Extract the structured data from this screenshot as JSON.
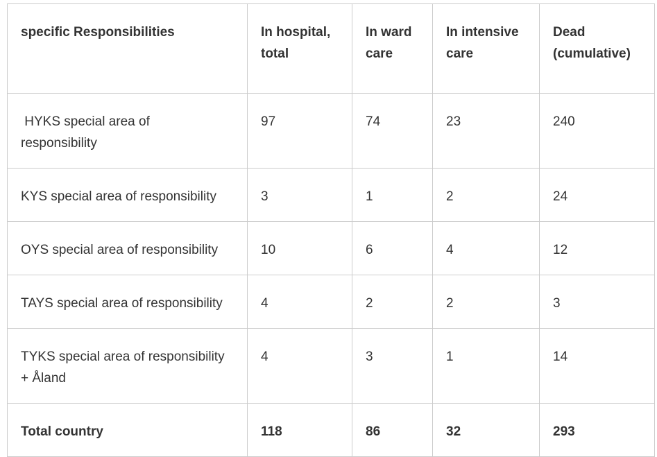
{
  "chart_data": {
    "type": "table",
    "title": "",
    "columns": [
      "specific Responsibilities",
      "In hospital, total",
      "In ward care",
      "In intensive care",
      "Dead (cumulative)"
    ],
    "rows": [
      {
        "label": "HYKS special area of responsibility",
        "in_hospital_total": 97,
        "in_ward_care": 74,
        "in_intensive_care": 23,
        "dead_cumulative": 240
      },
      {
        "label": "KYS special area of responsibility",
        "in_hospital_total": 3,
        "in_ward_care": 1,
        "in_intensive_care": 2,
        "dead_cumulative": 24
      },
      {
        "label": "OYS special area of responsibility",
        "in_hospital_total": 10,
        "in_ward_care": 6,
        "in_intensive_care": 4,
        "dead_cumulative": 12
      },
      {
        "label": "TAYS special area of responsibility",
        "in_hospital_total": 4,
        "in_ward_care": 2,
        "in_intensive_care": 2,
        "dead_cumulative": 3
      },
      {
        "label": "TYKS special area of responsibility + Åland",
        "in_hospital_total": 4,
        "in_ward_care": 3,
        "in_intensive_care": 1,
        "dead_cumulative": 14
      },
      {
        "label": "Total country",
        "in_hospital_total": 118,
        "in_ward_care": 86,
        "in_intensive_care": 32,
        "dead_cumulative": 293
      }
    ]
  },
  "table": {
    "headers": [
      "specific Responsibilities",
      "In hospital,\ntotal",
      "In ward\ncare",
      "In intensive\ncare",
      "Dead\n(cumulative)"
    ],
    "rows": [
      {
        "label": " HYKS special area of\nresponsibility",
        "values": [
          "97",
          "74",
          "23",
          "240"
        ]
      },
      {
        "label": "KYS special area of responsibility",
        "values": [
          "3",
          "1",
          "2",
          "24"
        ]
      },
      {
        "label": "OYS special area of responsibility",
        "values": [
          "10",
          "6",
          "4",
          "12"
        ]
      },
      {
        "label": "TAYS special area of responsibility",
        "values": [
          "4",
          "2",
          "2",
          "3"
        ]
      },
      {
        "label": "TYKS special area of responsibility\n+ Åland",
        "values": [
          "4",
          "3",
          "1",
          "14"
        ]
      }
    ],
    "total_row": {
      "label": "Total country",
      "values": [
        "118",
        "86",
        "32",
        "293"
      ]
    },
    "colors": {
      "text": "#333333",
      "border": "#cccccc",
      "background": "#ffffff"
    }
  }
}
